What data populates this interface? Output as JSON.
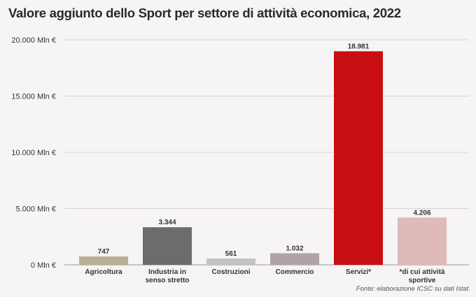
{
  "chart_data": {
    "type": "bar",
    "title": "Valore aggiunto dello Sport per settore di attività economica, 2022",
    "categories": [
      "Agricoltura",
      "Industria in senso stretto",
      "Costruzioni",
      "Commercio",
      "Servizi*",
      "*di cui attività sportive"
    ],
    "category_lines": [
      [
        "Agricoltura"
      ],
      [
        "Industria in",
        "senso stretto"
      ],
      [
        "Costruzioni"
      ],
      [
        "Commercio"
      ],
      [
        "Servizi*"
      ],
      [
        "*di cui attività",
        "sportive"
      ]
    ],
    "values": [
      747,
      3344,
      561,
      1032,
      18981,
      4206
    ],
    "value_labels": [
      "747",
      "3.344",
      "561",
      "1.032",
      "18.981",
      "4.206"
    ],
    "colors": [
      "#b8b094",
      "#6e6c6b",
      "#c4c2c1",
      "#b1a3a5",
      "#c90e12",
      "#e0b9bb"
    ],
    "yticks": [
      0,
      5000,
      10000,
      15000,
      20000
    ],
    "ytick_labels": [
      "0 Mln €",
      "5.000 Mln €",
      "10.000 Mln €",
      "15.000 Mln €",
      "20.000 Mln €"
    ],
    "ylim": [
      0,
      20000
    ],
    "xlabel": "",
    "ylabel": "",
    "grid": true,
    "source": "Fonte: elaborazione ICSC su dati Istat."
  }
}
